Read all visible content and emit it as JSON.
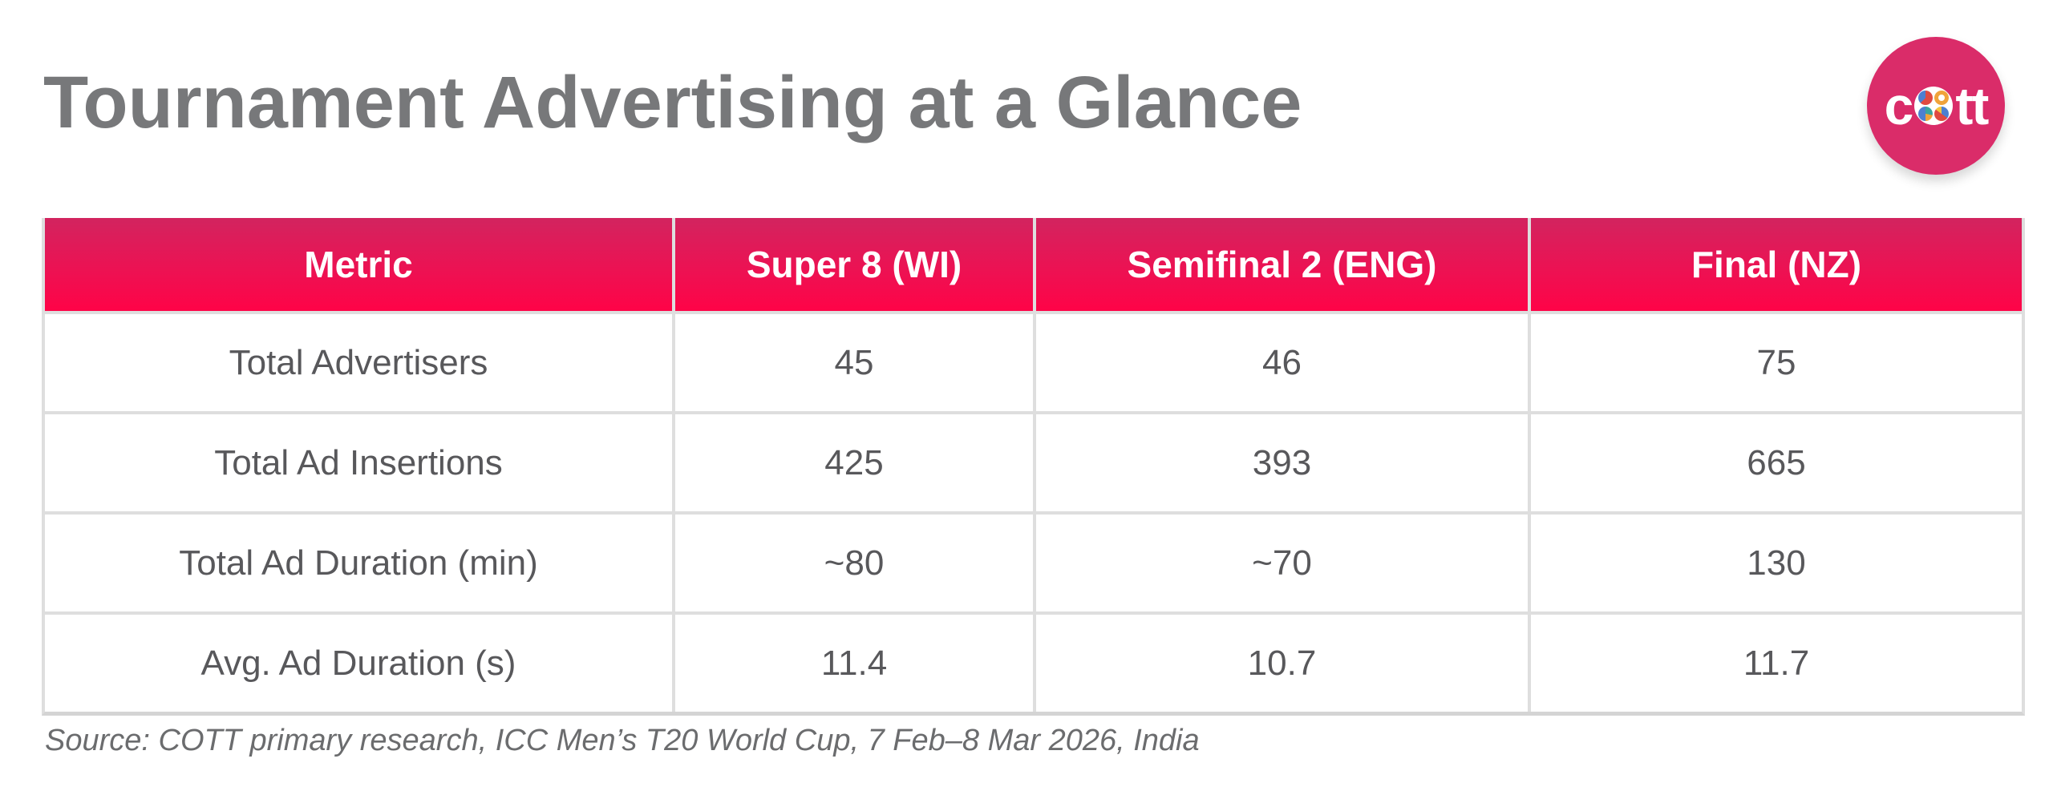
{
  "page": {
    "title": "Tournament Advertising at a Glance",
    "source": "Source: COTT primary research, ICC Men’s T20 World Cup, 7 Feb–8 Mar 2026, India"
  },
  "logo": {
    "name": "COTT",
    "left": "c",
    "right": "tt",
    "circle_color": "#DA2C69",
    "icon_note": "the letter o is a white circle holding four mini chart icons"
  },
  "colors": {
    "header_gradient_top": "#D2245F",
    "header_gradient_bottom": "#FF0347",
    "brand_pink": "#DA2C69",
    "grid_line": "#DEDEDE",
    "title_text": "#77787A",
    "cell_text": "#58585B",
    "source_text": "#6B6C6E"
  },
  "chart_data": {
    "type": "table",
    "title": "Tournament Advertising at a Glance",
    "columns": [
      "Metric",
      "Super 8 (WI)",
      "Semifinal 2 (ENG)",
      "Final (NZ)"
    ],
    "rows": [
      [
        "Total Advertisers",
        "45",
        "46",
        "75"
      ],
      [
        "Total Ad Insertions",
        "425",
        "393",
        "665"
      ],
      [
        "Total Ad Duration (min)",
        "~80",
        "~70",
        "130"
      ],
      [
        "Avg. Ad Duration (s)",
        "11.4",
        "10.7",
        "11.7"
      ]
    ],
    "source": "Source: COTT primary research, ICC Men’s T20 World Cup, 7 Feb–8 Mar 2026, India"
  }
}
